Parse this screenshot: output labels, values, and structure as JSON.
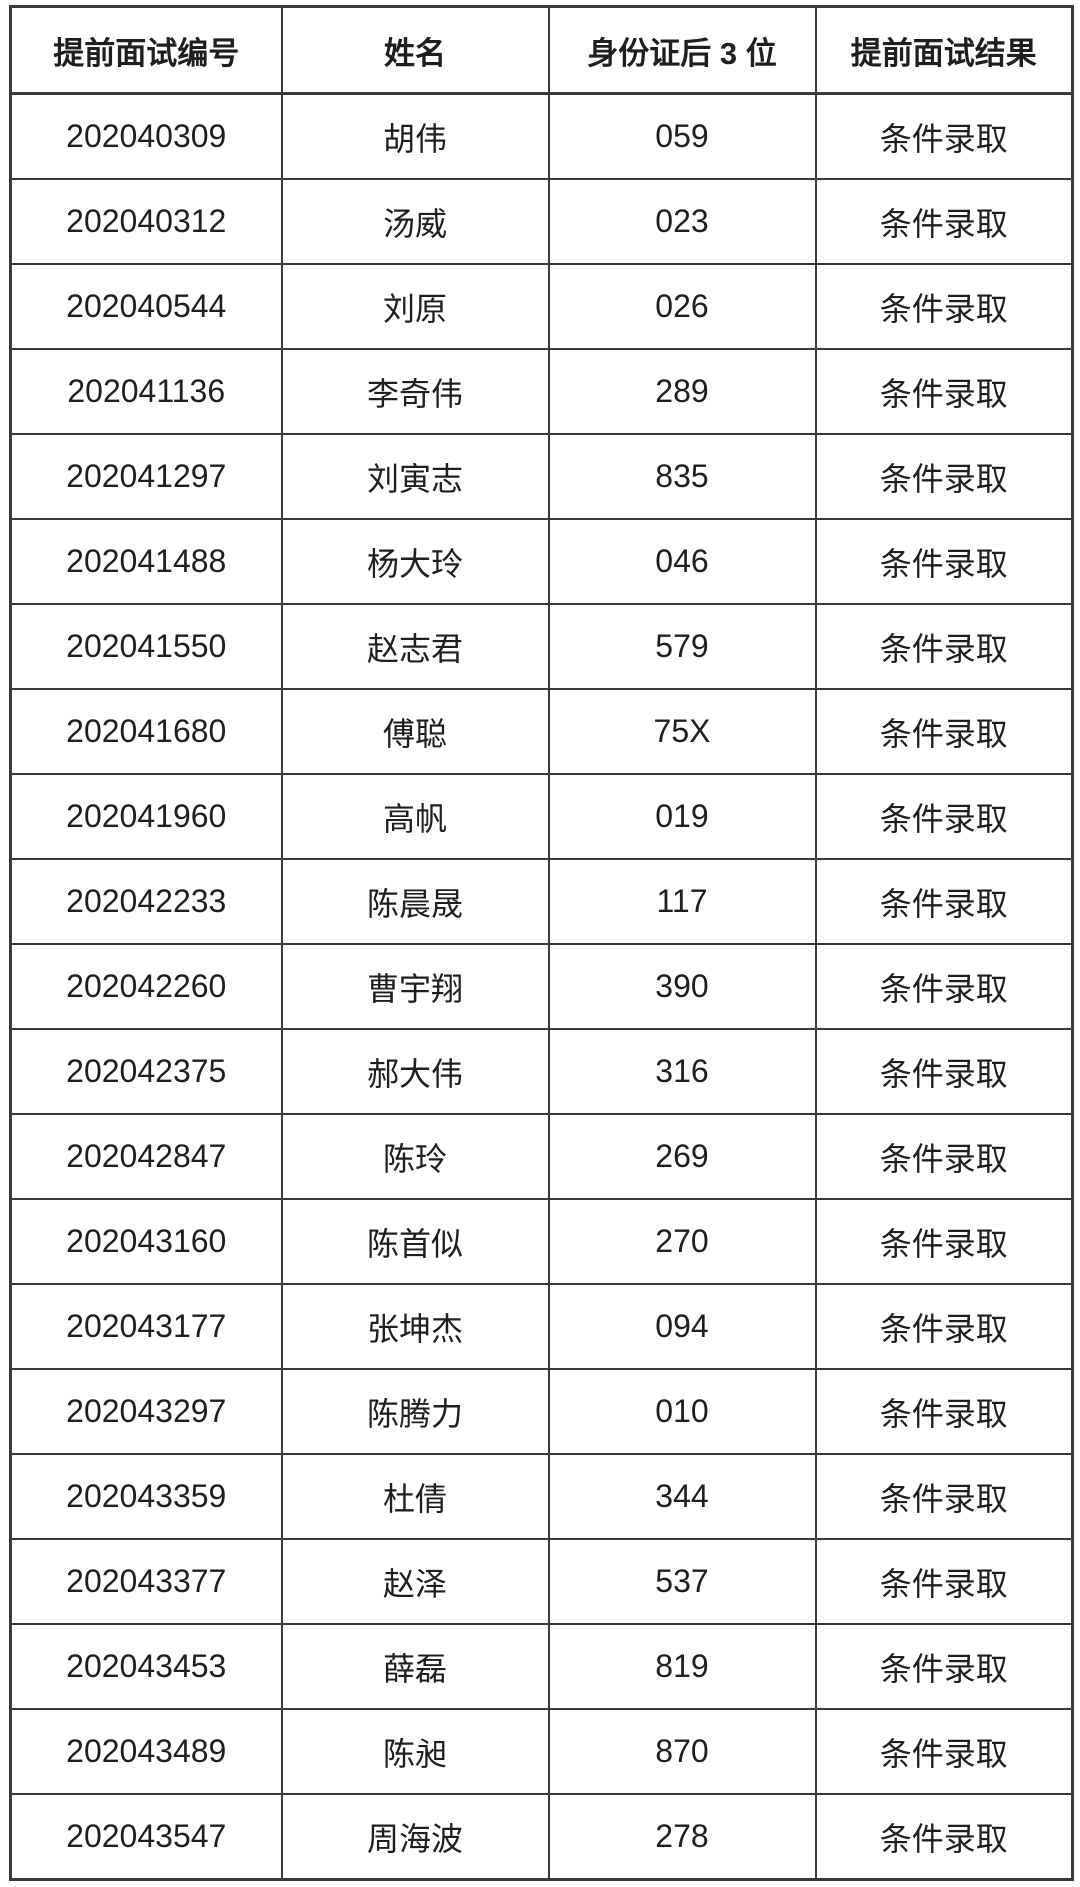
{
  "table": {
    "columns": [
      {
        "label": "提前面试编号"
      },
      {
        "label": "姓名"
      },
      {
        "label": "身份证后 3 位"
      },
      {
        "label": "提前面试结果"
      }
    ],
    "rows": [
      {
        "interview_id": "202040309",
        "name": "胡伟",
        "id_last3": "059",
        "result": "条件录取"
      },
      {
        "interview_id": "202040312",
        "name": "汤威",
        "id_last3": "023",
        "result": "条件录取"
      },
      {
        "interview_id": "202040544",
        "name": "刘原",
        "id_last3": "026",
        "result": "条件录取"
      },
      {
        "interview_id": "202041136",
        "name": "李奇伟",
        "id_last3": "289",
        "result": "条件录取"
      },
      {
        "interview_id": "202041297",
        "name": "刘寅志",
        "id_last3": "835",
        "result": "条件录取"
      },
      {
        "interview_id": "202041488",
        "name": "杨大玲",
        "id_last3": "046",
        "result": "条件录取"
      },
      {
        "interview_id": "202041550",
        "name": "赵志君",
        "id_last3": "579",
        "result": "条件录取"
      },
      {
        "interview_id": "202041680",
        "name": "傅聪",
        "id_last3": "75X",
        "result": "条件录取"
      },
      {
        "interview_id": "202041960",
        "name": "高帆",
        "id_last3": "019",
        "result": "条件录取"
      },
      {
        "interview_id": "202042233",
        "name": "陈晨晟",
        "id_last3": "117",
        "result": "条件录取"
      },
      {
        "interview_id": "202042260",
        "name": "曹宇翔",
        "id_last3": "390",
        "result": "条件录取"
      },
      {
        "interview_id": "202042375",
        "name": "郝大伟",
        "id_last3": "316",
        "result": "条件录取"
      },
      {
        "interview_id": "202042847",
        "name": "陈玲",
        "id_last3": "269",
        "result": "条件录取"
      },
      {
        "interview_id": "202043160",
        "name": "陈首似",
        "id_last3": "270",
        "result": "条件录取"
      },
      {
        "interview_id": "202043177",
        "name": "张坤杰",
        "id_last3": "094",
        "result": "条件录取"
      },
      {
        "interview_id": "202043297",
        "name": "陈腾力",
        "id_last3": "010",
        "result": "条件录取"
      },
      {
        "interview_id": "202043359",
        "name": "杜倩",
        "id_last3": "344",
        "result": "条件录取"
      },
      {
        "interview_id": "202043377",
        "name": "赵泽",
        "id_last3": "537",
        "result": "条件录取"
      },
      {
        "interview_id": "202043453",
        "name": "薛磊",
        "id_last3": "819",
        "result": "条件录取"
      },
      {
        "interview_id": "202043489",
        "name": "陈昶",
        "id_last3": "870",
        "result": "条件录取"
      },
      {
        "interview_id": "202043547",
        "name": "周海波",
        "id_last3": "278",
        "result": "条件录取"
      }
    ]
  }
}
